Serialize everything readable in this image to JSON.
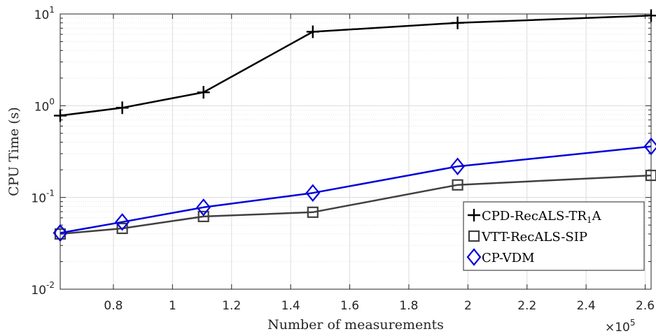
{
  "chart_data": {
    "type": "line",
    "xlabel": "Number of measurements",
    "ylabel": "CPU Time (s)",
    "x_multiplier": "×10",
    "x_multiplier_exp": "5",
    "yscale": "log",
    "xlim": [
      0.62,
      2.62
    ],
    "ylim": [
      0.01,
      10
    ],
    "grid": true,
    "legend_position": "bottom-right",
    "x_ticks": [
      "0.8",
      "1",
      "1.2",
      "1.4",
      "1.6",
      "1.8",
      "2",
      "2.2",
      "2.4",
      "2.6"
    ],
    "x_tick_values": [
      0.8,
      1.0,
      1.2,
      1.4,
      1.6,
      1.8,
      2.0,
      2.2,
      2.4,
      2.6
    ],
    "y_ticks": [
      {
        "base": "10",
        "exp": "1",
        "value": 10
      },
      {
        "base": "10",
        "exp": "0",
        "value": 1
      },
      {
        "base": "10",
        "exp": "-1",
        "value": 0.1
      },
      {
        "base": "10",
        "exp": "-2",
        "value": 0.01
      }
    ],
    "x": [
      0.62,
      0.83,
      1.105,
      1.475,
      1.965,
      2.62
    ],
    "series": [
      {
        "name": "CPD-RecALS-TR",
        "name_sub": "1",
        "name_suffix": "A",
        "color": "#000000",
        "marker": "plus",
        "values": [
          0.78,
          0.95,
          1.4,
          6.4,
          8.0,
          9.6
        ]
      },
      {
        "name": "VTT-RecALS-SIP",
        "color": "#404040",
        "marker": "square",
        "values": [
          0.04,
          0.046,
          0.062,
          0.069,
          0.137,
          0.174
        ]
      },
      {
        "name": "CP-VDM",
        "color": "#0000dd",
        "marker": "diamond",
        "values": [
          0.041,
          0.054,
          0.078,
          0.112,
          0.218,
          0.36
        ]
      }
    ]
  }
}
